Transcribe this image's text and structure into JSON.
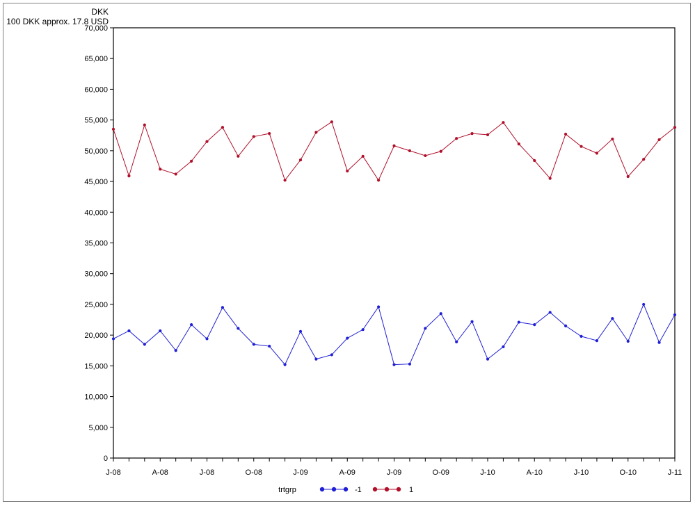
{
  "chart_data": {
    "type": "line",
    "ylabel_lines": [
      "DKK",
      "100 DKK approx. 17.8 USD"
    ],
    "ylim": [
      0,
      70000
    ],
    "yticks": [
      "0",
      "5,000",
      "10,000",
      "15,000",
      "20,000",
      "25,000",
      "30,000",
      "35,000",
      "40,000",
      "45,000",
      "50,000",
      "55,000",
      "60,000",
      "65,000",
      "70,000"
    ],
    "ytick_values": [
      0,
      5000,
      10000,
      15000,
      20000,
      25000,
      30000,
      35000,
      40000,
      45000,
      50000,
      55000,
      60000,
      65000,
      70000
    ],
    "x_count": 37,
    "xtick_labels": [
      {
        "i": 0,
        "label": "J-08"
      },
      {
        "i": 3,
        "label": "A-08"
      },
      {
        "i": 6,
        "label": "J-08"
      },
      {
        "i": 9,
        "label": "O-08"
      },
      {
        "i": 12,
        "label": "J-09"
      },
      {
        "i": 15,
        "label": "A-09"
      },
      {
        "i": 18,
        "label": "J-09"
      },
      {
        "i": 21,
        "label": "O-09"
      },
      {
        "i": 24,
        "label": "J-10"
      },
      {
        "i": 27,
        "label": "A-10"
      },
      {
        "i": 30,
        "label": "J-10"
      },
      {
        "i": 33,
        "label": "O-10"
      },
      {
        "i": 36,
        "label": "J-11"
      }
    ],
    "grid": false,
    "legend": {
      "title": "trtgrp",
      "placement": "bottom"
    },
    "series": [
      {
        "name": "-1",
        "color": "#1f1fd6",
        "values": [
          19400,
          20700,
          18500,
          20700,
          17500,
          21700,
          19400,
          24500,
          21100,
          18500,
          18200,
          15200,
          20600,
          16100,
          16800,
          19500,
          20900,
          24600,
          15200,
          15300,
          21100,
          23500,
          18900,
          22200,
          16100,
          18100,
          22100,
          21700,
          23700,
          21500,
          19800,
          19100,
          22700,
          19000,
          25000,
          18800,
          23300
        ]
      },
      {
        "name": "1",
        "color": "#b0102a",
        "values": [
          53500,
          45900,
          54200,
          47000,
          46200,
          48300,
          51500,
          53800,
          49100,
          52300,
          52800,
          45200,
          48500,
          53000,
          54700,
          46700,
          49100,
          45200,
          50800,
          50000,
          49200,
          49900,
          52000,
          52800,
          52600,
          54600,
          51100,
          48400,
          45500,
          52700,
          50700,
          49600,
          51900,
          45800,
          48600,
          51800,
          53800
        ]
      }
    ]
  }
}
